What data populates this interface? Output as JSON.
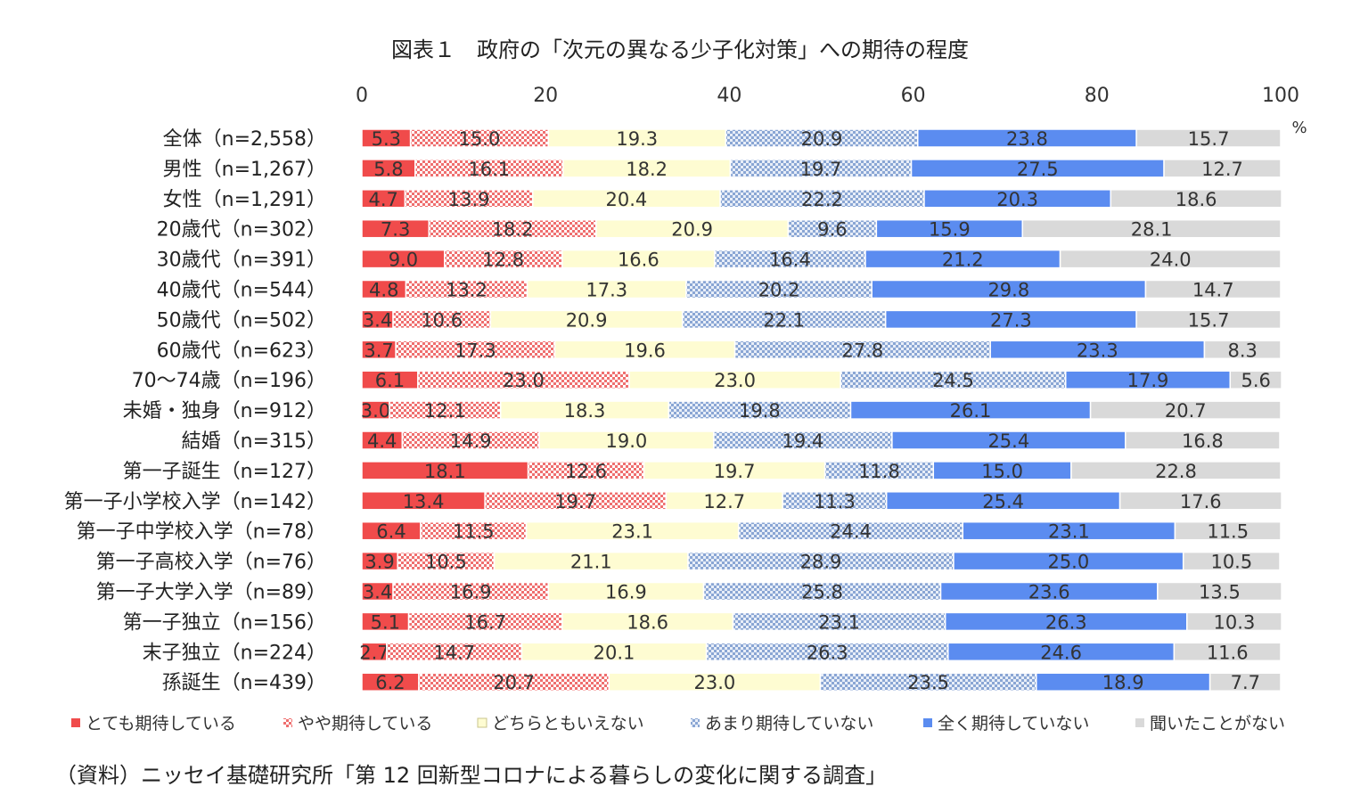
{
  "title": "図表１　政府の「次元の異なる少子化対策」への期待の程度",
  "source": "（資料）ニッセイ基礎研究所「第 12 回新型コロナによる暮らしの変化に関する調査」",
  "chart_data": {
    "type": "bar",
    "orientation": "horizontal",
    "stacked": true,
    "unit": "%",
    "xlim": [
      0,
      100
    ],
    "xticks": [
      "0",
      "20",
      "40",
      "60",
      "80",
      "100"
    ],
    "legend_position": "bottom",
    "categories": [
      "全体（n=2,558）",
      "男性（n=1,267）",
      "女性（n=1,291）",
      "20歳代（n=302）",
      "30歳代（n=391）",
      "40歳代（n=544）",
      "50歳代（n=502）",
      "60歳代（n=623）",
      "70～74歳（n=196）",
      "未婚・独身（n=912）",
      "結婚（n=315）",
      "第一子誕生（n=127）",
      "第一子小学校入学（n=142）",
      "第一子中学校入学（n=78）",
      "第一子高校入学（n=76）",
      "第一子大学入学（n=89）",
      "第一子独立（n=156）",
      "末子独立（n=224）",
      "孫誕生（n=439）"
    ],
    "series": [
      {
        "name": "とても期待している",
        "color": "#f04b4b",
        "pattern": "solid",
        "values": [
          5.3,
          5.8,
          4.7,
          7.3,
          9.0,
          4.8,
          3.4,
          3.7,
          6.1,
          3.0,
          4.4,
          18.1,
          13.4,
          6.4,
          3.9,
          3.4,
          5.1,
          2.7,
          6.2
        ]
      },
      {
        "name": "やや期待している",
        "color": "#f2a0a0",
        "pattern": "checker",
        "values": [
          15.0,
          16.1,
          13.9,
          18.2,
          12.8,
          13.2,
          10.6,
          17.3,
          23.0,
          12.1,
          14.9,
          12.6,
          19.7,
          11.5,
          10.5,
          16.9,
          16.7,
          14.7,
          20.7
        ]
      },
      {
        "name": "どちらともいえない",
        "color": "#fefcd2",
        "pattern": "solid",
        "values": [
          19.3,
          18.2,
          20.4,
          20.9,
          16.6,
          17.3,
          20.9,
          19.6,
          23.0,
          18.3,
          19.0,
          19.7,
          12.7,
          23.1,
          21.1,
          16.9,
          18.6,
          20.1,
          23.0
        ]
      },
      {
        "name": "あまり期待していない",
        "color": "#a9bfe0",
        "pattern": "dots",
        "values": [
          20.9,
          19.7,
          22.2,
          9.6,
          16.4,
          20.2,
          22.1,
          27.8,
          24.5,
          19.8,
          19.4,
          11.8,
          11.3,
          24.4,
          28.9,
          25.8,
          23.1,
          26.3,
          23.5
        ]
      },
      {
        "name": "全く期待していない",
        "color": "#5b8cf0",
        "pattern": "solid",
        "values": [
          23.8,
          27.5,
          20.3,
          15.9,
          21.2,
          29.8,
          27.3,
          23.3,
          17.9,
          26.1,
          25.4,
          15.0,
          25.4,
          23.1,
          25.0,
          23.6,
          26.3,
          24.6,
          18.9
        ]
      },
      {
        "name": "聞いたことがない",
        "color": "#d9d9d9",
        "pattern": "solid",
        "values": [
          15.7,
          12.7,
          18.6,
          28.1,
          24.0,
          14.7,
          15.7,
          8.3,
          5.6,
          20.7,
          16.8,
          22.8,
          17.6,
          11.5,
          10.5,
          13.5,
          10.3,
          11.6,
          7.7
        ]
      }
    ]
  }
}
